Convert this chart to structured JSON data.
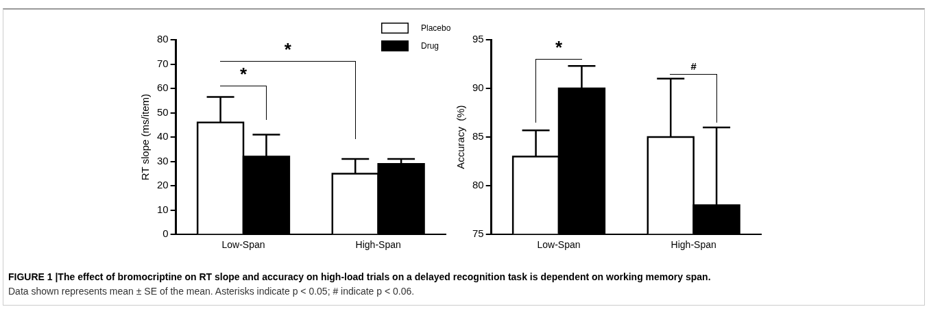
{
  "chart_data": [
    {
      "type": "bar",
      "categories": [
        "Low-Span",
        "High-Span"
      ],
      "ylabel": "RT slope (ms/item)",
      "ylim": [
        0,
        80
      ],
      "yticks": [
        0,
        10,
        20,
        30,
        40,
        50,
        60,
        70,
        80
      ],
      "grid": false,
      "legend": "top right",
      "series": [
        {
          "name": "Placebo",
          "color": "#ffffff",
          "values": [
            46,
            25
          ],
          "errors": [
            [
              46,
              56.5
            ],
            [
              25,
              31
            ]
          ]
        },
        {
          "name": "Drug",
          "color": "#000000",
          "values": [
            32,
            29
          ],
          "errors": [
            [
              32,
              41
            ],
            [
              29,
              31
            ]
          ]
        }
      ],
      "annotations": [
        "*",
        "*",
        "FIGURE 1 |The effect of bromocriptine on RT slope and accuracy on high-load trials on a delayed recognition task is dependent on working memory span.",
        "Data shown represents mean ± SE of the mean. Asterisks indicate p < 0.05; # indicate p < 0.06."
      ]
    },
    {
      "type": "bar",
      "categories": [
        "Low-Span",
        "High-Span"
      ],
      "ylabel": "Accuracy  (%)",
      "ylim": [
        75,
        95
      ],
      "yticks": [
        75,
        80,
        85,
        90,
        95
      ],
      "grid": false,
      "series": [
        {
          "color": "#ffffff",
          "values": [
            83,
            85
          ],
          "errors": [
            [
              83,
              85.7
            ],
            [
              85,
              91
            ]
          ]
        },
        {
          "color": "#000000",
          "values": [
            90,
            78
          ],
          "errors": [
            [
              90,
              92.3
            ],
            [
              78,
              86
            ]
          ]
        }
      ],
      "annotations": [
        "*",
        "#"
      ]
    }
  ]
}
